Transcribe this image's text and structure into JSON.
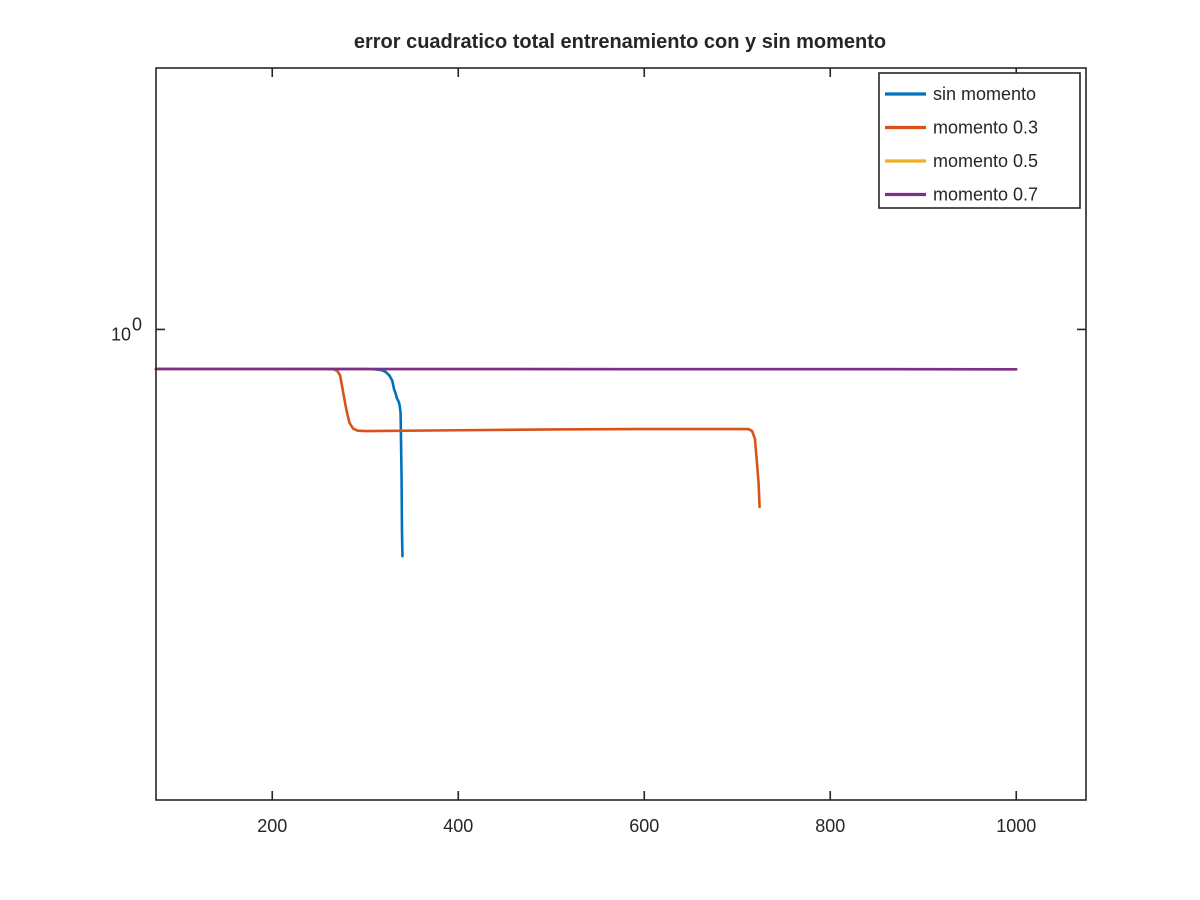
{
  "chart_data": {
    "type": "line",
    "title": "error cuadratico total entrenamiento con y sin momento",
    "xlabel": "",
    "ylabel": "",
    "xlim": [
      75,
      1075
    ],
    "ylim_log10": [
      -0.72,
      0.4
    ],
    "y_scale": "log",
    "grid": false,
    "legend_position": "top-right",
    "x_ticks": [
      200,
      400,
      600,
      800,
      1000
    ],
    "x_tick_labels": [
      "200",
      "400",
      "600",
      "800",
      "1000"
    ],
    "y_ticks": [
      {
        "base": "10",
        "exp": "0",
        "value": 1
      }
    ],
    "series": [
      {
        "name": "sin momento",
        "color": "#0072bd",
        "points": [
          [
            75,
            0.87
          ],
          [
            300,
            0.87
          ],
          [
            310,
            0.869
          ],
          [
            318,
            0.866
          ],
          [
            322,
            0.861
          ],
          [
            326,
            0.85
          ],
          [
            329,
            0.835
          ],
          [
            331,
            0.81
          ],
          [
            333,
            0.795
          ],
          [
            334,
            0.785
          ],
          [
            336,
            0.775
          ],
          [
            337,
            0.765
          ],
          [
            338,
            0.745
          ],
          [
            339,
            0.6
          ],
          [
            339.5,
            0.49
          ],
          [
            340,
            0.45
          ]
        ]
      },
      {
        "name": "momento 0.3",
        "color": "#d95319",
        "points": [
          [
            75,
            0.87
          ],
          [
            265,
            0.87
          ],
          [
            270,
            0.864
          ],
          [
            273,
            0.85
          ],
          [
            275,
            0.82
          ],
          [
            277,
            0.79
          ],
          [
            280,
            0.75
          ],
          [
            283,
            0.72
          ],
          [
            287,
            0.705
          ],
          [
            292,
            0.7
          ],
          [
            300,
            0.699
          ],
          [
            400,
            0.701
          ],
          [
            500,
            0.703
          ],
          [
            600,
            0.704
          ],
          [
            712,
            0.704
          ],
          [
            716,
            0.699
          ],
          [
            719,
            0.68
          ],
          [
            721,
            0.63
          ],
          [
            723,
            0.58
          ],
          [
            724,
            0.535
          ]
        ]
      },
      {
        "name": "momento 0.5",
        "color": "#edb120",
        "points": [
          [
            75,
            0.87
          ],
          [
            1000,
            0.869
          ]
        ]
      },
      {
        "name": "momento 0.7",
        "color": "#7e2f8e",
        "points": [
          [
            75,
            0.87
          ],
          [
            1000,
            0.869
          ]
        ]
      }
    ]
  }
}
